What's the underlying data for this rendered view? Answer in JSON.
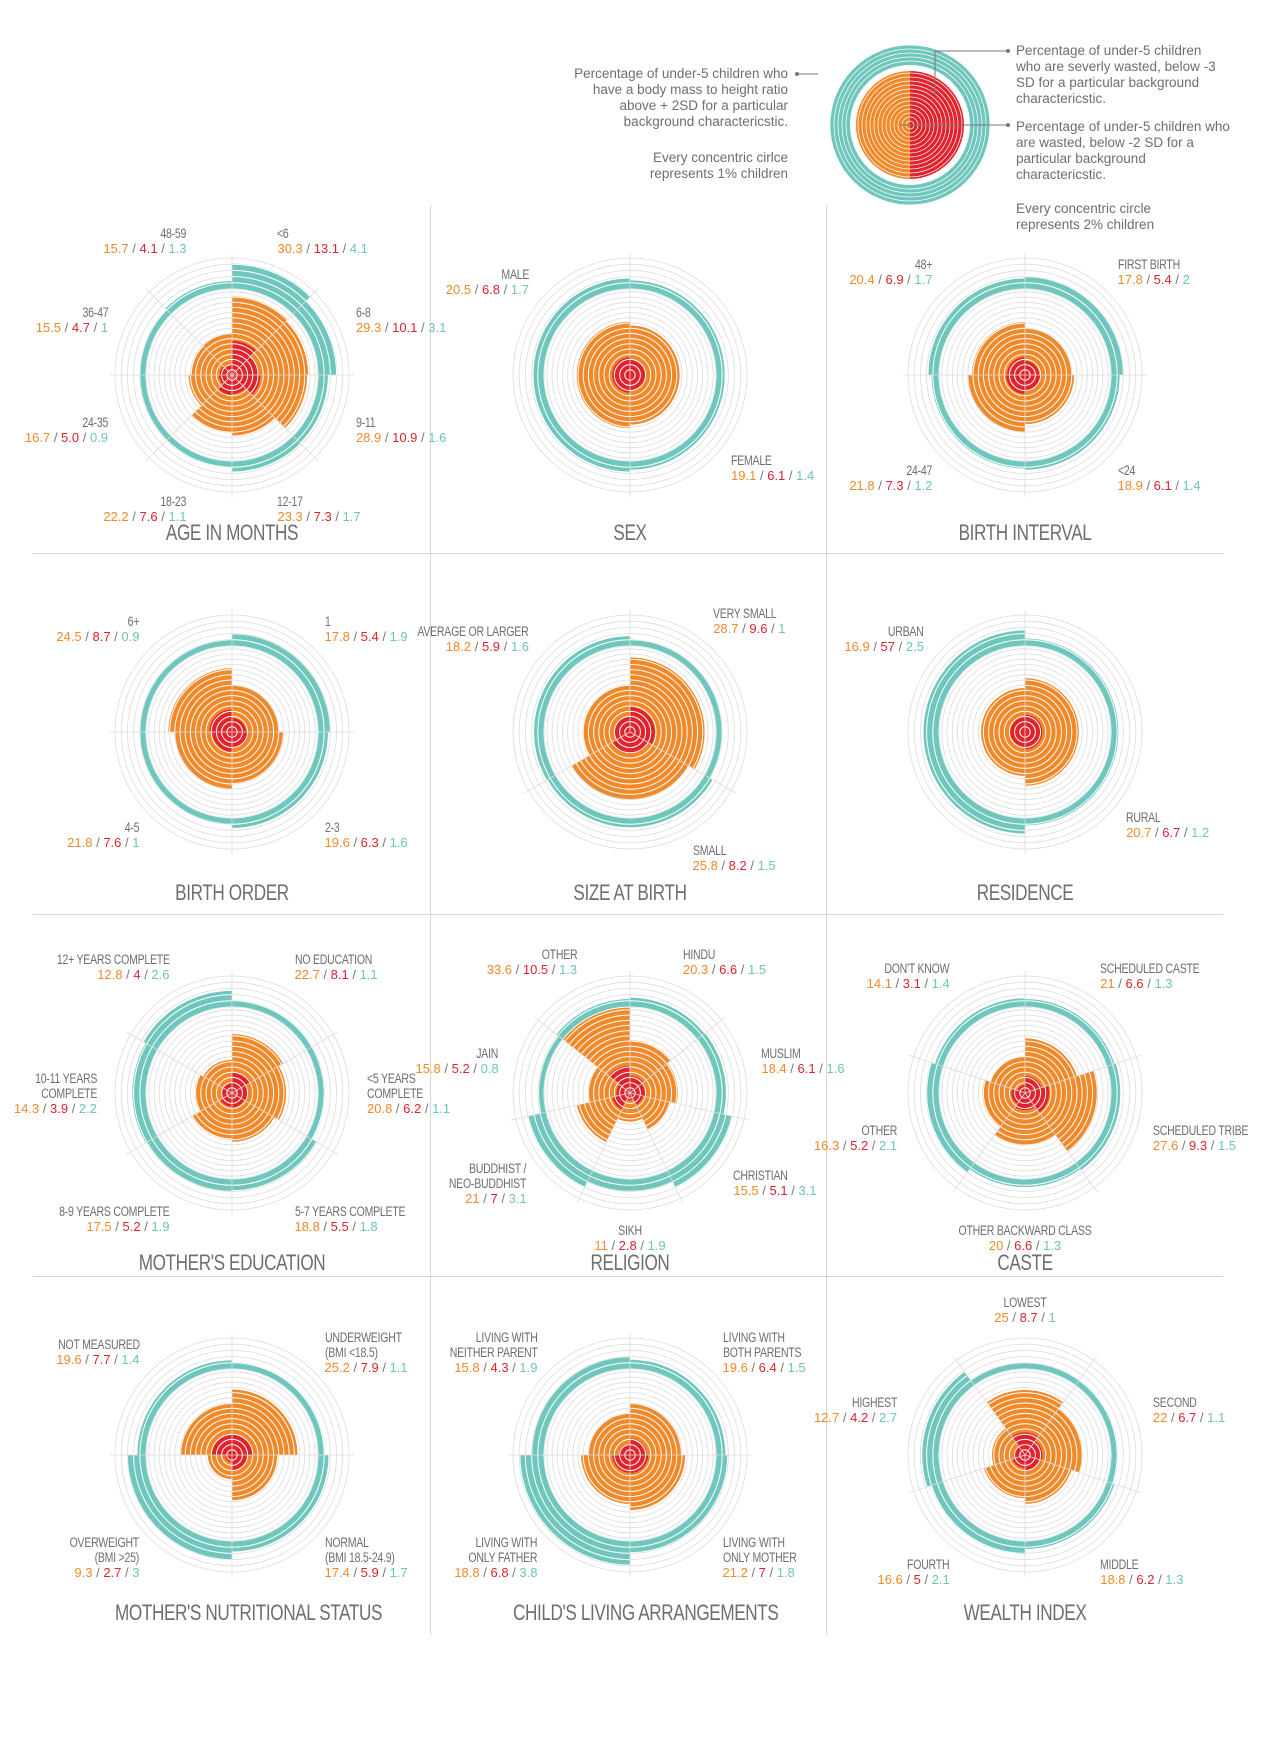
{
  "colors": {
    "wasted": "#f0892a",
    "severely_wasted": "#e0232c",
    "overweight": "#6fc6bd",
    "grid": "#dcdcdc",
    "text": "#6d6e70"
  },
  "legend": {
    "overweight_text": "Percentage of under-5 children who have a body mass to height ratio above + 2SD for a particular background charactericstic.",
    "overweight_scale": "Every concentric cirlce represents 1% children",
    "severe_text": "Percentage of under-5 children who are severly wasted, below -3 SD for a particular background charactericstic.",
    "wasted_text": "Percentage of under-5 children who are wasted, below -2 SD for a particular background charactericstic.",
    "wasted_scale": "Every concentric circle represents 2% children"
  },
  "chart_data": [
    {
      "id": "age",
      "type": "radial-bar",
      "title": "AGE IN MONTHS",
      "categories": [
        {
          "name": "<6",
          "wasted": "30.3",
          "severely_wasted": "13.1",
          "overweight": "4.1"
        },
        {
          "name": "6-8",
          "wasted": "29.3",
          "severely_wasted": "10.1",
          "overweight": "3.1"
        },
        {
          "name": "9-11",
          "wasted": "28.9",
          "severely_wasted": "10.9",
          "overweight": "1.6"
        },
        {
          "name": "12-17",
          "wasted": "23.3",
          "severely_wasted": "7.3",
          "overweight": "1.7"
        },
        {
          "name": "18-23",
          "wasted": "22.2",
          "severely_wasted": "7.6",
          "overweight": "1.1"
        },
        {
          "name": "24-35",
          "wasted": "16.7",
          "severely_wasted": "5.0",
          "overweight": "0.9"
        },
        {
          "name": "36-47",
          "wasted": "15.5",
          "severely_wasted": "4.7",
          "overweight": "1"
        },
        {
          "name": "48-59",
          "wasted": "15.7",
          "severely_wasted": "4.1",
          "overweight": "1.3"
        }
      ]
    },
    {
      "id": "sex",
      "type": "radial-bar",
      "title": "SEX",
      "categories": [
        {
          "name": "FEMALE",
          "wasted": "19.1",
          "severely_wasted": "6.1",
          "overweight": "1.4"
        },
        {
          "name": "MALE",
          "wasted": "20.5",
          "severely_wasted": "6.8",
          "overweight": "1.7"
        }
      ]
    },
    {
      "id": "birth_interval",
      "type": "radial-bar",
      "title": "BIRTH INTERVAL",
      "categories": [
        {
          "name": "FIRST BIRTH",
          "wasted": "17.8",
          "severely_wasted": "5.4",
          "overweight": "2"
        },
        {
          "name": "<24",
          "wasted": "18.9",
          "severely_wasted": "6.1",
          "overweight": "1.4"
        },
        {
          "name": "24-47",
          "wasted": "21.8",
          "severely_wasted": "7.3",
          "overweight": "1.2"
        },
        {
          "name": "48+",
          "wasted": "20.4",
          "severely_wasted": "6.9",
          "overweight": "1.7"
        }
      ]
    },
    {
      "id": "birth_order",
      "type": "radial-bar",
      "title": "BIRTH ORDER",
      "categories": [
        {
          "name": "1",
          "wasted": "17.8",
          "severely_wasted": "5.4",
          "overweight": "1.9"
        },
        {
          "name": "2-3",
          "wasted": "19.6",
          "severely_wasted": "6.3",
          "overweight": "1.6"
        },
        {
          "name": "4-5",
          "wasted": "21.8",
          "severely_wasted": "7.6",
          "overweight": "1"
        },
        {
          "name": "6+",
          "wasted": "24.5",
          "severely_wasted": "8.7",
          "overweight": "0.9"
        }
      ]
    },
    {
      "id": "size_at_birth",
      "type": "radial-bar",
      "title": "SIZE AT BIRTH",
      "categories": [
        {
          "name": "VERY SMALL",
          "wasted": "28.7",
          "severely_wasted": "9.6",
          "overweight": "1"
        },
        {
          "name": "SMALL",
          "wasted": "25.8",
          "severely_wasted": "8.2",
          "overweight": "1.5"
        },
        {
          "name": "AVERAGE OR LARGER",
          "wasted": "18.2",
          "severely_wasted": "5.9",
          "overweight": "1.6"
        }
      ]
    },
    {
      "id": "residence",
      "type": "radial-bar",
      "title": "RESIDENCE",
      "categories": [
        {
          "name": "RURAL",
          "wasted": "20.7",
          "severely_wasted": "6.7",
          "overweight": "1.2"
        },
        {
          "name": "URBAN",
          "wasted": "16.9",
          "severely_wasted": "57",
          "overweight": "2.5"
        }
      ]
    },
    {
      "id": "education",
      "type": "radial-bar",
      "title": "MOTHER'S EDUCATION",
      "categories": [
        {
          "name": "NO EDUCATION",
          "wasted": "22.7",
          "severely_wasted": "8.1",
          "overweight": "1.1"
        },
        {
          "name": "<5 YEARS\nCOMPLETE",
          "wasted": "20.8",
          "severely_wasted": "6.2",
          "overweight": "1.1"
        },
        {
          "name": "5-7 YEARS COMPLETE",
          "wasted": "18.8",
          "severely_wasted": "5.5",
          "overweight": "1.8"
        },
        {
          "name": "8-9 YEARS COMPLETE",
          "wasted": "17.5",
          "severely_wasted": "5.2",
          "overweight": "1.9"
        },
        {
          "name": "10-11 YEARS\nCOMPLETE",
          "wasted": "14.3",
          "severely_wasted": "3.9",
          "overweight": "2.2"
        },
        {
          "name": "12+ YEARS COMPLETE",
          "wasted": "12.8",
          "severely_wasted": "4",
          "overweight": "2.6"
        }
      ]
    },
    {
      "id": "religion",
      "type": "radial-bar",
      "title": "RELIGION",
      "categories": [
        {
          "name": "HINDU",
          "wasted": "20.3",
          "severely_wasted": "6.6",
          "overweight": "1.5"
        },
        {
          "name": "MUSLIM",
          "wasted": "18.4",
          "severely_wasted": "6.1",
          "overweight": "1.6"
        },
        {
          "name": "CHRISTIAN",
          "wasted": "15.5",
          "severely_wasted": "5.1",
          "overweight": "3.1"
        },
        {
          "name": "SIKH",
          "wasted": "11",
          "severely_wasted": "2.8",
          "overweight": "1.9"
        },
        {
          "name": "BUDDHIST /\nNEO-BUDDHIST",
          "wasted": "21",
          "severely_wasted": "7",
          "overweight": "3.1"
        },
        {
          "name": "JAIN",
          "wasted": "15.8",
          "severely_wasted": "5.2",
          "overweight": "0.8"
        },
        {
          "name": "OTHER",
          "wasted": "33.6",
          "severely_wasted": "10.5",
          "overweight": "1.3"
        }
      ]
    },
    {
      "id": "caste",
      "type": "radial-bar",
      "title": "CASTE",
      "categories": [
        {
          "name": "SCHEDULED CASTE",
          "wasted": "21",
          "severely_wasted": "6.6",
          "overweight": "1.3"
        },
        {
          "name": "SCHEDULED TRIBE",
          "wasted": "27.6",
          "severely_wasted": "9.3",
          "overweight": "1.5"
        },
        {
          "name": "OTHER BACKWARD CLASS",
          "wasted": "20",
          "severely_wasted": "6.6",
          "overweight": "1.3"
        },
        {
          "name": "OTHER",
          "wasted": "16.3",
          "severely_wasted": "5.2",
          "overweight": "2.1"
        },
        {
          "name": "DON'T KNOW",
          "wasted": "14.1",
          "severely_wasted": "3.1",
          "overweight": "1.4"
        }
      ]
    },
    {
      "id": "nutrition",
      "type": "radial-bar",
      "title": "MOTHER'S NUTRITIONAL STATUS",
      "categories": [
        {
          "name": "UNDERWEIGHT\n(BMI <18.5)",
          "wasted": "25.2",
          "severely_wasted": "7.9",
          "overweight": "1.1"
        },
        {
          "name": "NORMAL\n(BMI 18.5-24.9)",
          "wasted": "17.4",
          "severely_wasted": "5.9",
          "overweight": "1.7"
        },
        {
          "name": "OVERWEIGHT\n(BMI >25)",
          "wasted": "9.3",
          "severely_wasted": "2.7",
          "overweight": "3"
        },
        {
          "name": "NOT MEASURED",
          "wasted": "19.6",
          "severely_wasted": "7.7",
          "overweight": "1.4"
        }
      ]
    },
    {
      "id": "living",
      "type": "radial-bar",
      "title": "CHILD'S LIVING ARRANGEMENTS",
      "categories": [
        {
          "name": "LIVING WITH\nBOTH PARENTS",
          "wasted": "19.6",
          "severely_wasted": "6.4",
          "overweight": "1.5"
        },
        {
          "name": "LIVING WITH\nONLY MOTHER",
          "wasted": "21.2",
          "severely_wasted": "7",
          "overweight": "1.8"
        },
        {
          "name": "LIVING WITH\nONLY FATHER",
          "wasted": "18.8",
          "severely_wasted": "6.8",
          "overweight": "3.8"
        },
        {
          "name": "LIVING WITH\nNEITHER PARENT",
          "wasted": "15.8",
          "severely_wasted": "4.3",
          "overweight": "1.9"
        }
      ]
    },
    {
      "id": "wealth",
      "type": "radial-bar",
      "title": "WEALTH INDEX",
      "categories": [
        {
          "name": "LOWEST",
          "wasted": "25",
          "severely_wasted": "8.7",
          "overweight": "1"
        },
        {
          "name": "SECOND",
          "wasted": "22",
          "severely_wasted": "6.7",
          "overweight": "1.1"
        },
        {
          "name": "MIDDLE",
          "wasted": "18.8",
          "severely_wasted": "6.2",
          "overweight": "1.3"
        },
        {
          "name": "FOURTH",
          "wasted": "16.6",
          "severely_wasted": "5",
          "overweight": "2.1"
        },
        {
          "name": "HIGHEST",
          "wasted": "12.7",
          "severely_wasted": "4.2",
          "overweight": "2.7"
        }
      ]
    }
  ]
}
